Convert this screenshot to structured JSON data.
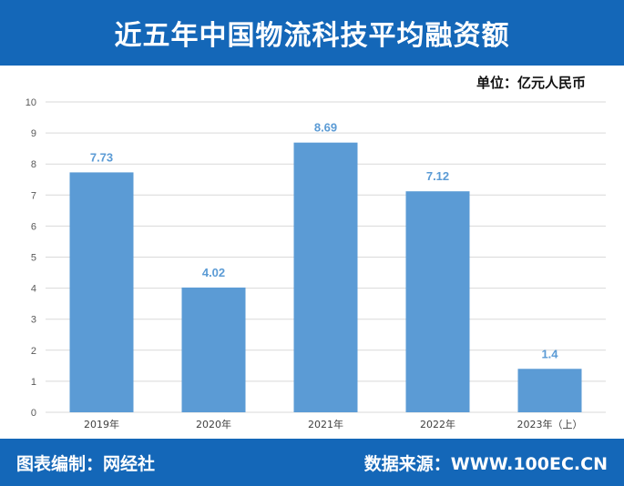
{
  "header": {
    "title": "近五年中国物流科技平均融资额"
  },
  "unit_label": "单位：亿元人民币",
  "footer": {
    "editor": "图表编制：网经社",
    "source": "数据来源：WWW.100EC.CN"
  },
  "colors": {
    "brand": "#1467b8",
    "bar": "#5b9bd5",
    "data_label": "#5b9bd5",
    "grid": "#d9d9d9"
  },
  "chart_data": {
    "type": "bar",
    "categories": [
      "2019年",
      "2020年",
      "2021年",
      "2022年",
      "2023年（上）"
    ],
    "values": [
      7.73,
      4.02,
      8.69,
      7.12,
      1.4
    ],
    "data_labels": [
      "7.73",
      "4.02",
      "8.69",
      "7.12",
      "1.4"
    ],
    "ylim": [
      0,
      10
    ],
    "yticks": [
      "0",
      "1",
      "2",
      "3",
      "4",
      "5",
      "6",
      "7",
      "8",
      "9",
      "10"
    ],
    "grid": true
  }
}
